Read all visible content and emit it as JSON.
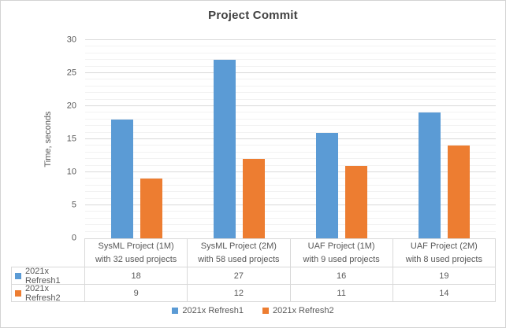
{
  "colors": {
    "series1": "#5B9BD5",
    "series2": "#ED7D31",
    "title_text": "#404040",
    "axis_text": "#595959",
    "major_grid": "#D9D9D9",
    "minor_grid": "#F2F2F2",
    "table_border": "#D9D9D9",
    "frame_border": "#D3D3D3",
    "background": "#FFFFFF"
  },
  "chart_data": {
    "type": "bar",
    "title": "Project Commit",
    "ylabel": "Time, seconds",
    "xlabel": "",
    "ylim": [
      0,
      30
    ],
    "major_unit": 5,
    "minor_unit": 1,
    "yticks": [
      0,
      5,
      10,
      15,
      20,
      25,
      30
    ],
    "grid": "horizontal major and minor gridlines",
    "legend_position": "bottom",
    "show_data_table": true,
    "categories": [
      "SysML Project (1M)\nwith 32 used projects",
      "SysML Project (2M)\nwith 58 used projects",
      "UAF Project (1M)\nwith 9 used projects",
      "UAF Project (2M)\nwith 8 used projects"
    ],
    "series": [
      {
        "name": "2021x Refresh1",
        "color": "#5B9BD5",
        "values": [
          18,
          27,
          16,
          19
        ]
      },
      {
        "name": "2021x Refresh2",
        "color": "#ED7D31",
        "values": [
          9,
          12,
          11,
          14
        ]
      }
    ]
  }
}
